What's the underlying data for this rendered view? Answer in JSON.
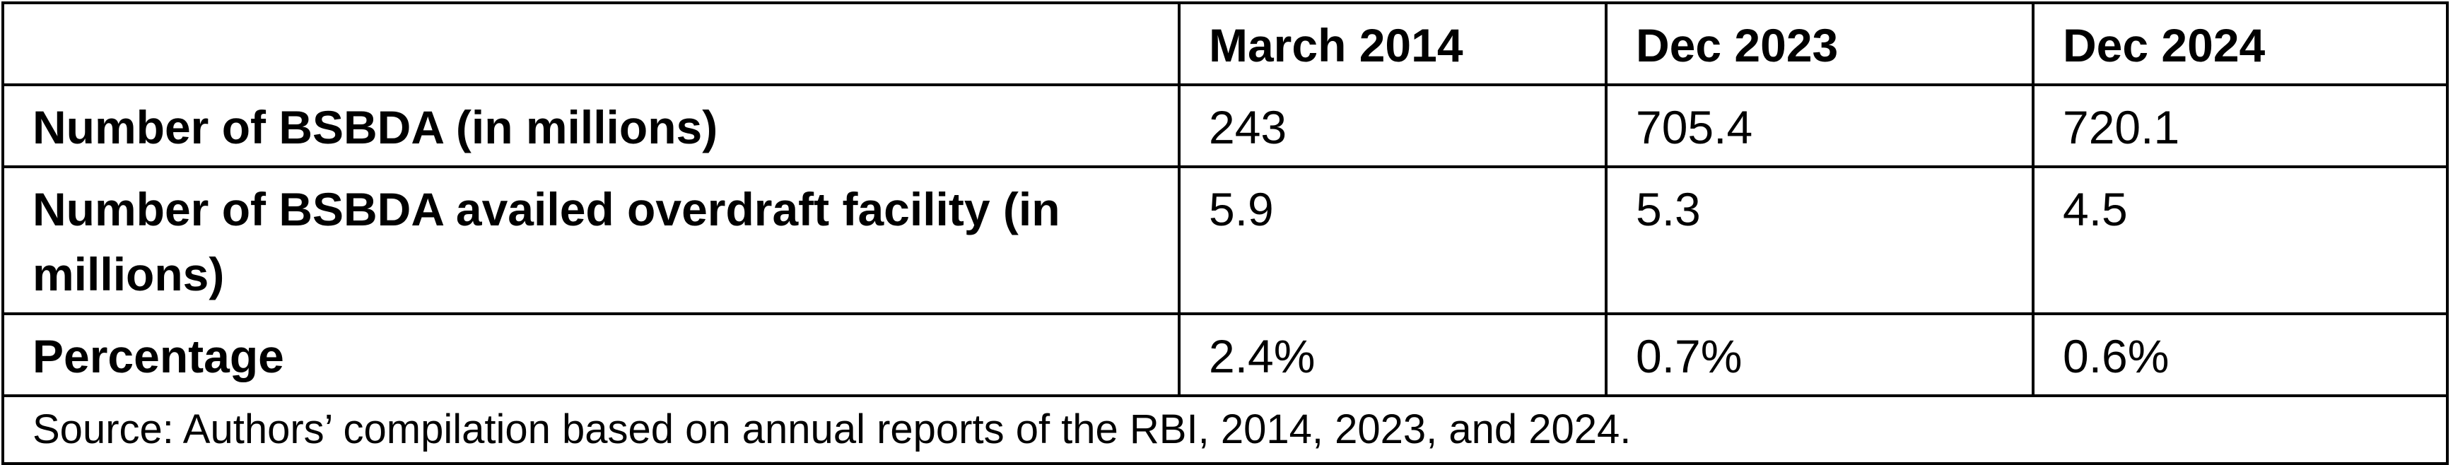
{
  "table": {
    "headers": [
      "",
      "March 2014",
      "Dec 2023",
      "Dec 2024"
    ],
    "rows": [
      {
        "label": "Number of BSBDA (in millions)",
        "values": [
          "243",
          "705.4",
          "720.1"
        ]
      },
      {
        "label": "Number of BSBDA availed overdraft facility (in millions)",
        "values": [
          "5.9",
          "5.3",
          "4.5"
        ]
      },
      {
        "label": "Percentage",
        "values": [
          "2.4%",
          "0.7%",
          "0.6%"
        ]
      }
    ],
    "source": "Source: Authors’ compilation based on annual reports of the RBI, 2014, 2023, and 2024."
  }
}
